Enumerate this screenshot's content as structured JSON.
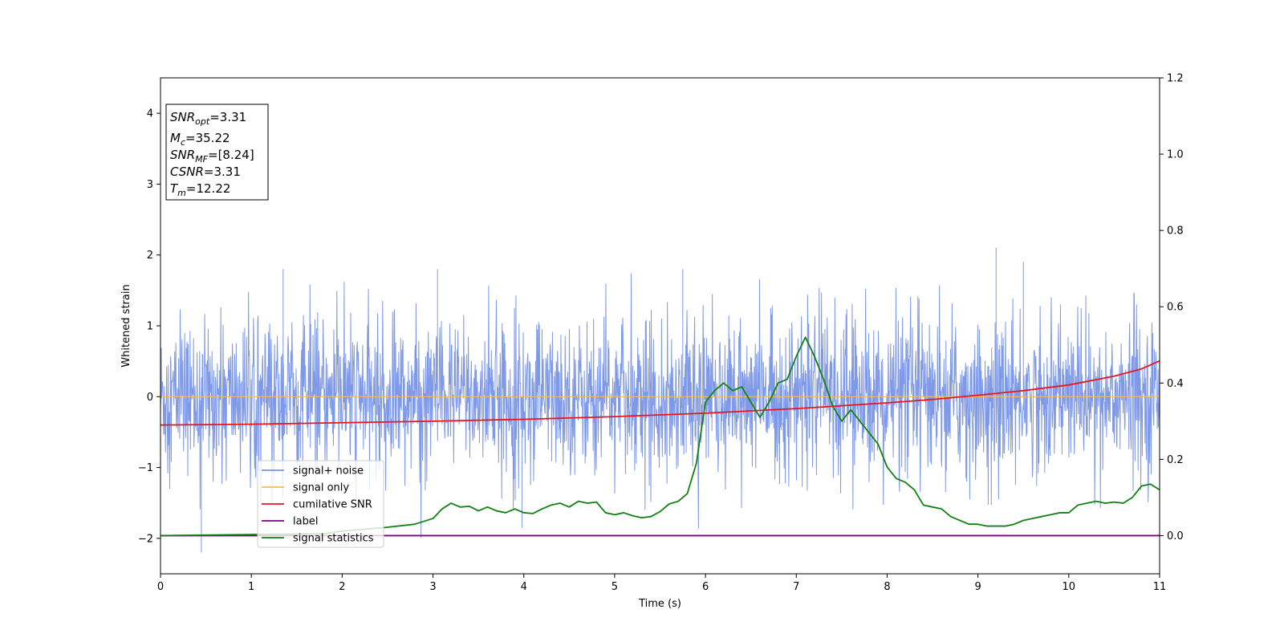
{
  "chart_data": {
    "type": "line",
    "xlabel": "Time (s)",
    "ylabel": "Whitened strain",
    "xlim": [
      0,
      11
    ],
    "ylim_left": [
      -2.5,
      4.5
    ],
    "ylim_right": [
      -0.1,
      1.2
    ],
    "x_ticks": [
      0,
      1,
      2,
      3,
      4,
      5,
      6,
      7,
      8,
      9,
      10,
      11
    ],
    "y_ticks_left": [
      -2,
      -1,
      0,
      1,
      2,
      3,
      4
    ],
    "y_ticks_right": [
      0.0,
      0.2,
      0.4,
      0.6,
      0.8,
      1.0,
      1.2
    ],
    "legend_position": "lower-left",
    "annotation": {
      "snr_opt": {
        "sym": "SNR",
        "sub": "opt",
        "value": "=3.31"
      },
      "mc": {
        "sym": "M",
        "sub": "c",
        "value": "=35.22"
      },
      "snr_mf": {
        "sym": "SNR",
        "sub": "MF",
        "value": "=[8.24]"
      },
      "csnr": {
        "sym": "CSNR",
        "value": "=3.31"
      },
      "tm": {
        "sym": "T",
        "sub": "m",
        "value": "=12.22"
      }
    },
    "series": [
      {
        "name": "signal+ noise",
        "axis": "left",
        "color": "#7893e8",
        "style": "noise",
        "amplitude_typical": 0.9,
        "max": 2.1,
        "min": -2.2
      },
      {
        "name": "signal only",
        "axis": "left",
        "color": "#f5b95f",
        "x": [
          0,
          11
        ],
        "y": [
          0,
          0
        ]
      },
      {
        "name": "cumilative SNR",
        "axis": "right",
        "color": "#e8161e",
        "x": [
          0,
          1,
          2,
          3,
          4,
          5,
          6,
          7,
          8,
          8.5,
          9,
          9.5,
          10,
          10.5,
          10.8,
          11
        ],
        "y": [
          0.29,
          0.292,
          0.296,
          0.3,
          0.305,
          0.312,
          0.321,
          0.333,
          0.348,
          0.357,
          0.368,
          0.38,
          0.395,
          0.418,
          0.437,
          0.458
        ]
      },
      {
        "name": "label",
        "axis": "right",
        "color": "#800080",
        "x": [
          0,
          11
        ],
        "y": [
          0,
          0
        ]
      },
      {
        "name": "signal statistics",
        "axis": "right",
        "color": "#138013",
        "x": [
          0,
          1.8,
          2.0,
          2.2,
          2.5,
          2.8,
          3.0,
          3.1,
          3.2,
          3.3,
          3.4,
          3.5,
          3.6,
          3.7,
          3.8,
          3.9,
          4.0,
          4.1,
          4.2,
          4.3,
          4.4,
          4.5,
          4.6,
          4.7,
          4.8,
          4.9,
          5.0,
          5.1,
          5.2,
          5.3,
          5.4,
          5.5,
          5.6,
          5.7,
          5.8,
          5.9,
          6.0,
          6.1,
          6.2,
          6.3,
          6.4,
          6.5,
          6.6,
          6.7,
          6.8,
          6.9,
          7.0,
          7.1,
          7.2,
          7.3,
          7.4,
          7.5,
          7.6,
          7.7,
          7.8,
          7.9,
          8.0,
          8.1,
          8.2,
          8.3,
          8.4,
          8.5,
          8.6,
          8.7,
          8.8,
          8.9,
          9.0,
          9.1,
          9.2,
          9.3,
          9.4,
          9.5,
          9.6,
          9.7,
          9.8,
          9.9,
          10.0,
          10.1,
          10.2,
          10.3,
          10.4,
          10.5,
          10.6,
          10.7,
          10.8,
          10.9,
          11.0
        ],
        "y": [
          0.0,
          0.005,
          0.012,
          0.016,
          0.022,
          0.03,
          0.045,
          0.07,
          0.085,
          0.075,
          0.077,
          0.065,
          0.075,
          0.065,
          0.06,
          0.07,
          0.06,
          0.058,
          0.07,
          0.08,
          0.085,
          0.075,
          0.09,
          0.085,
          0.088,
          0.06,
          0.055,
          0.06,
          0.052,
          0.047,
          0.05,
          0.063,
          0.083,
          0.09,
          0.11,
          0.19,
          0.35,
          0.38,
          0.4,
          0.38,
          0.39,
          0.35,
          0.31,
          0.35,
          0.4,
          0.41,
          0.47,
          0.52,
          0.47,
          0.41,
          0.34,
          0.3,
          0.33,
          0.3,
          0.27,
          0.24,
          0.18,
          0.15,
          0.14,
          0.12,
          0.08,
          0.075,
          0.07,
          0.05,
          0.04,
          0.03,
          0.03,
          0.025,
          0.025,
          0.025,
          0.03,
          0.04,
          0.045,
          0.05,
          0.055,
          0.06,
          0.06,
          0.08,
          0.085,
          0.09,
          0.085,
          0.088,
          0.085,
          0.1,
          0.13,
          0.135,
          0.12
        ]
      }
    ]
  }
}
